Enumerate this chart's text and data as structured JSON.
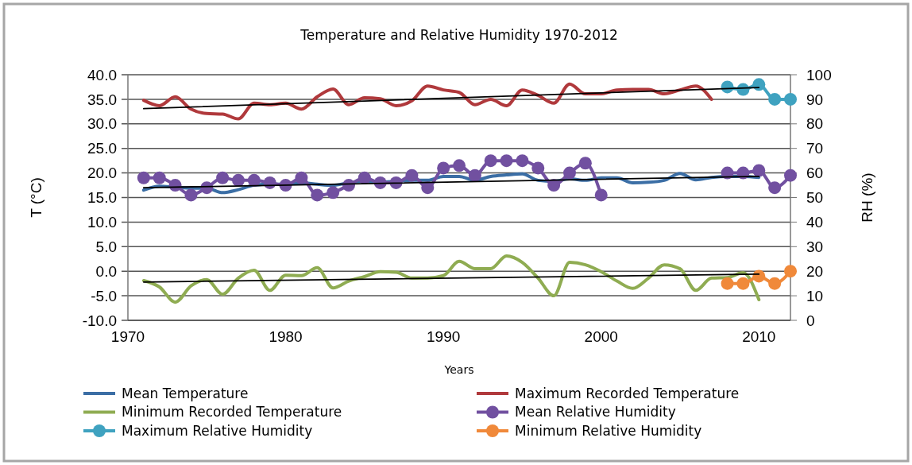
{
  "chart_data": {
    "type": "line",
    "title": "Temperature and Relative Humidity 1970-2012",
    "xlabel": "Years",
    "ylabel": "T (°C)",
    "y2label": "RH (%)",
    "x": [
      1971,
      1972,
      1973,
      1974,
      1975,
      1976,
      1977,
      1978,
      1979,
      1980,
      1981,
      1982,
      1983,
      1984,
      1985,
      1986,
      1987,
      1988,
      1989,
      1990,
      1991,
      1992,
      1993,
      1994,
      1995,
      1996,
      1997,
      1998,
      1999,
      2000,
      2001,
      2002,
      2003,
      2004,
      2005,
      2006,
      2007,
      2008,
      2009,
      2010,
      2011,
      2012
    ],
    "xlim": [
      1970,
      2012
    ],
    "xticks": [
      1970,
      1980,
      1990,
      2000,
      2010
    ],
    "ylim": [
      -10,
      40
    ],
    "yticks": [
      {
        "value": -10,
        "label": "-10.0"
      },
      {
        "value": -5,
        "label": "-5.0"
      },
      {
        "value": 0,
        "label": "0.0"
      },
      {
        "value": 5,
        "label": "5.0"
      },
      {
        "value": 10,
        "label": "10.0"
      },
      {
        "value": 15,
        "label": "15.0"
      },
      {
        "value": 20,
        "label": "20.0"
      },
      {
        "value": 25,
        "label": "25.0"
      },
      {
        "value": 30,
        "label": "30.0"
      },
      {
        "value": 35,
        "label": "35.0"
      },
      {
        "value": 40,
        "label": "40.0"
      }
    ],
    "y2lim": [
      0,
      100
    ],
    "y2ticks": [
      0,
      10,
      20,
      30,
      40,
      50,
      60,
      70,
      80,
      90,
      100
    ],
    "grid": "y",
    "legend": "bottom",
    "series": [
      {
        "name": "Mean Temperature",
        "color": "#3b6ea5",
        "marker": "none",
        "values": [
          16.5,
          17.3,
          17.1,
          16.9,
          16.9,
          16.0,
          16.6,
          17.5,
          17.7,
          17.7,
          18.0,
          17.7,
          17.5,
          18.0,
          18.3,
          18.1,
          18.3,
          18.5,
          18.5,
          19.3,
          19.3,
          18.5,
          19.3,
          19.6,
          19.8,
          18.5,
          18.3,
          18.8,
          18.5,
          19.0,
          19.0,
          18.0,
          18.1,
          18.5,
          19.9,
          18.6,
          19.1,
          19.3,
          19.3,
          19.1,
          null,
          null
        ]
      },
      {
        "name": "Maximum Recorded Temperature",
        "color": "#b0393c",
        "marker": "none",
        "values": [
          34.8,
          33.7,
          35.5,
          33.0,
          32.1,
          32.0,
          31.0,
          34.2,
          33.9,
          34.2,
          33.0,
          35.5,
          37.1,
          33.9,
          35.3,
          35.1,
          33.7,
          34.7,
          37.7,
          36.9,
          36.4,
          33.9,
          35.0,
          33.7,
          36.9,
          35.8,
          34.2,
          38.1,
          36.1,
          36.1,
          36.9,
          37.0,
          37.0,
          36.1,
          36.9,
          37.7,
          35.0,
          null,
          null,
          null,
          null,
          null
        ]
      },
      {
        "name": "Minimum Recorded Temperature",
        "color": "#8fac52",
        "marker": "none",
        "values": [
          -1.9,
          -3.2,
          -6.3,
          -3.0,
          -1.7,
          -4.7,
          -1.4,
          0.2,
          -3.9,
          -0.8,
          -0.9,
          0.7,
          -3.4,
          -2.0,
          -1.1,
          -0.1,
          -0.2,
          -1.4,
          -1.4,
          -0.9,
          2.0,
          0.5,
          0.5,
          3.1,
          1.8,
          -1.4,
          -5.0,
          1.8,
          1.3,
          -0.1,
          -2.0,
          -3.5,
          -1.4,
          1.3,
          0.5,
          -3.9,
          -1.4,
          -1.3,
          -0.3,
          -5.8,
          null,
          null
        ]
      },
      {
        "name": "Mean Relative Humidity",
        "color": "#7150a0",
        "marker": "circle",
        "axis": "y2",
        "values": [
          58,
          58,
          55,
          51,
          54,
          58,
          57,
          57,
          56,
          55,
          58,
          51,
          52,
          55,
          58,
          56,
          56,
          59,
          54,
          62,
          63,
          59,
          65,
          65,
          65,
          62,
          55,
          60,
          64,
          51,
          null,
          null,
          null,
          null,
          null,
          null,
          null,
          60,
          60,
          61,
          54,
          59
        ]
      },
      {
        "name": "Maximum Relative Humidity",
        "color": "#3fa2c0",
        "marker": "circle",
        "axis": "y2",
        "values": [
          null,
          null,
          null,
          null,
          null,
          null,
          null,
          null,
          null,
          null,
          null,
          null,
          null,
          null,
          null,
          null,
          null,
          null,
          null,
          null,
          null,
          null,
          null,
          null,
          null,
          null,
          null,
          null,
          null,
          null,
          null,
          null,
          null,
          null,
          null,
          null,
          null,
          95,
          94,
          96,
          90,
          90
        ]
      },
      {
        "name": "Minimum Relative Humidity",
        "color": "#f0893a",
        "marker": "circle",
        "axis": "y2",
        "values": [
          null,
          null,
          null,
          null,
          null,
          null,
          null,
          null,
          null,
          null,
          null,
          null,
          null,
          null,
          null,
          null,
          null,
          null,
          null,
          null,
          null,
          null,
          null,
          null,
          null,
          null,
          null,
          null,
          null,
          null,
          null,
          null,
          null,
          null,
          null,
          null,
          null,
          15,
          15,
          18,
          15,
          20
        ]
      },
      {
        "type": "line",
        "color": "#000000",
        "marker": "none",
        "values": [
          33.1,
          null,
          null,
          null,
          null,
          null,
          null,
          null,
          null,
          null,
          null,
          null,
          null,
          null,
          null,
          null,
          null,
          null,
          null,
          null,
          null,
          null,
          null,
          null,
          null,
          null,
          null,
          null,
          null,
          null,
          null,
          null,
          null,
          null,
          null,
          null,
          null,
          null,
          null,
          37.4,
          null,
          null
        ]
      },
      {
        "type": "line",
        "color": "#000000",
        "marker": "none",
        "values": [
          17.0,
          null,
          null,
          null,
          null,
          null,
          null,
          null,
          null,
          null,
          null,
          null,
          null,
          null,
          null,
          null,
          null,
          null,
          null,
          null,
          null,
          null,
          null,
          null,
          null,
          null,
          null,
          null,
          null,
          null,
          null,
          null,
          null,
          null,
          null,
          null,
          null,
          null,
          null,
          19.3,
          null,
          null
        ]
      },
      {
        "type": "line",
        "color": "#000000",
        "marker": "none",
        "values": [
          -2.2,
          null,
          null,
          null,
          null,
          null,
          null,
          null,
          null,
          null,
          null,
          null,
          null,
          null,
          null,
          null,
          null,
          null,
          null,
          null,
          null,
          null,
          null,
          null,
          null,
          null,
          null,
          null,
          null,
          null,
          null,
          null,
          null,
          null,
          null,
          null,
          null,
          null,
          null,
          -0.6,
          null,
          null
        ]
      }
    ]
  }
}
